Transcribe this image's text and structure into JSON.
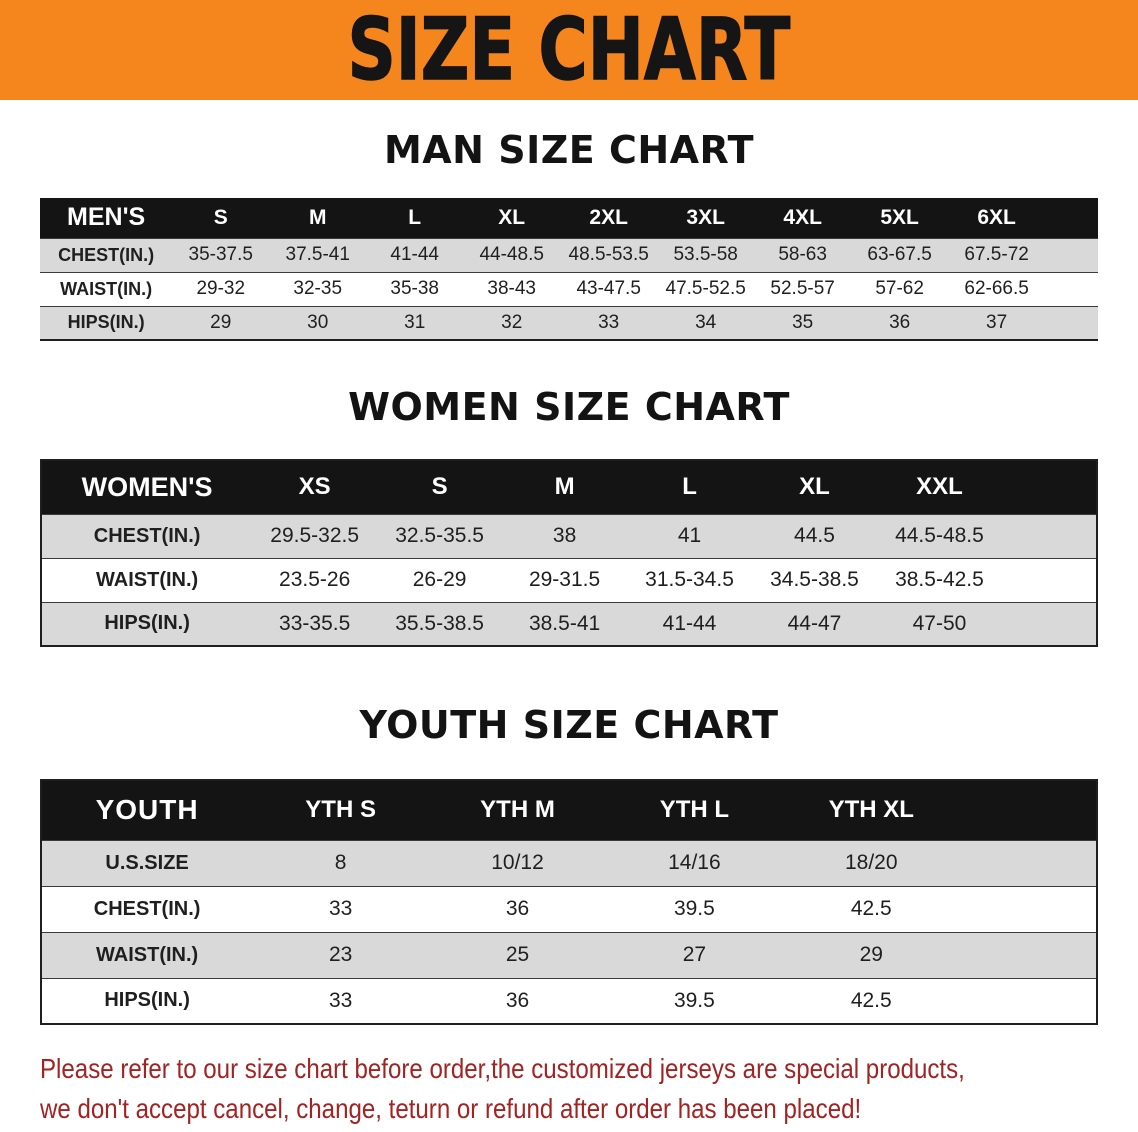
{
  "banner": {
    "title": "SIZE CHART",
    "background_color": "#f5851d",
    "title_color": "#151515"
  },
  "sections": [
    {
      "heading": "MAN SIZE CHART",
      "table": {
        "corner_label": "MEN'S",
        "columns": [
          "S",
          "M",
          "L",
          "XL",
          "2XL",
          "3XL",
          "4XL",
          "5XL",
          "6XL"
        ],
        "rows": [
          {
            "label": "CHEST(IN.)",
            "values": [
              "35-37.5",
              "37.5-41",
              "41-44",
              "44-48.5",
              "48.5-53.5",
              "53.5-58",
              "58-63",
              "63-67.5",
              "67.5-72"
            ]
          },
          {
            "label": "WAIST(IN.)",
            "values": [
              "29-32",
              "32-35",
              "35-38",
              "38-43",
              "43-47.5",
              "47.5-52.5",
              "52.5-57",
              "57-62",
              "62-66.5"
            ]
          },
          {
            "label": "HIPS(IN.)",
            "values": [
              "29",
              "30",
              "31",
              "32",
              "33",
              "34",
              "35",
              "36",
              "37"
            ]
          }
        ]
      }
    },
    {
      "heading": "WOMEN SIZE CHART",
      "table": {
        "corner_label": "WOMEN'S",
        "columns": [
          "XS",
          "S",
          "M",
          "L",
          "XL",
          "XXL"
        ],
        "rows": [
          {
            "label": "CHEST(IN.)",
            "values": [
              "29.5-32.5",
              "32.5-35.5",
              "38",
              "41",
              "44.5",
              "44.5-48.5"
            ]
          },
          {
            "label": "WAIST(IN.)",
            "values": [
              "23.5-26",
              "26-29",
              "29-31.5",
              "31.5-34.5",
              "34.5-38.5",
              "38.5-42.5"
            ]
          },
          {
            "label": "HIPS(IN.)",
            "values": [
              "33-35.5",
              "35.5-38.5",
              "38.5-41",
              "41-44",
              "44-47",
              "47-50"
            ]
          }
        ]
      }
    },
    {
      "heading": "YOUTH SIZE CHART",
      "table": {
        "corner_label": "YOUTH",
        "columns": [
          "YTH S",
          "YTH M",
          "YTH L",
          "YTH XL"
        ],
        "rows": [
          {
            "label": "U.S.SIZE",
            "values": [
              "8",
              "10/12",
              "14/16",
              "18/20"
            ]
          },
          {
            "label": "CHEST(IN.)",
            "values": [
              "33",
              "36",
              "39.5",
              "42.5"
            ]
          },
          {
            "label": "WAIST(IN.)",
            "values": [
              "23",
              "25",
              "27",
              "29"
            ]
          },
          {
            "label": "HIPS(IN.)",
            "values": [
              "33",
              "36",
              "39.5",
              "42.5"
            ]
          }
        ]
      }
    }
  ],
  "disclaimer": {
    "lines": [
      "Please refer to our size chart before order,the customized jerseys are special products,",
      "we don't accept cancel, change, teturn or refund after order has been placed!"
    ],
    "text_color": "#a32222"
  },
  "style_colors": {
    "table_header_background": "#141414",
    "table_header_text": "#ffffff",
    "alternate_row_background": "#d9d9d9"
  },
  "chart_data": [
    {
      "type": "table",
      "title": "MAN SIZE CHART",
      "columns": [
        "MEN'S",
        "S",
        "M",
        "L",
        "XL",
        "2XL",
        "3XL",
        "4XL",
        "5XL",
        "6XL"
      ],
      "rows": [
        [
          "CHEST(IN.)",
          "35-37.5",
          "37.5-41",
          "41-44",
          "44-48.5",
          "48.5-53.5",
          "53.5-58",
          "58-63",
          "63-67.5",
          "67.5-72"
        ],
        [
          "WAIST(IN.)",
          "29-32",
          "32-35",
          "35-38",
          "38-43",
          "43-47.5",
          "47.5-52.5",
          "52.5-57",
          "57-62",
          "62-66.5"
        ],
        [
          "HIPS(IN.)",
          "29",
          "30",
          "31",
          "32",
          "33",
          "34",
          "35",
          "36",
          "37"
        ]
      ]
    },
    {
      "type": "table",
      "title": "WOMEN SIZE CHART",
      "columns": [
        "WOMEN'S",
        "XS",
        "S",
        "M",
        "L",
        "XL",
        "XXL"
      ],
      "rows": [
        [
          "CHEST(IN.)",
          "29.5-32.5",
          "32.5-35.5",
          "38",
          "41",
          "44.5",
          "44.5-48.5"
        ],
        [
          "WAIST(IN.)",
          "23.5-26",
          "26-29",
          "29-31.5",
          "31.5-34.5",
          "34.5-38.5",
          "38.5-42.5"
        ],
        [
          "HIPS(IN.)",
          "33-35.5",
          "35.5-38.5",
          "38.5-41",
          "41-44",
          "44-47",
          "47-50"
        ]
      ]
    },
    {
      "type": "table",
      "title": "YOUTH SIZE CHART",
      "columns": [
        "YOUTH",
        "YTH S",
        "YTH M",
        "YTH L",
        "YTH XL"
      ],
      "rows": [
        [
          "U.S.SIZE",
          "8",
          "10/12",
          "14/16",
          "18/20"
        ],
        [
          "CHEST(IN.)",
          "33",
          "36",
          "39.5",
          "42.5"
        ],
        [
          "WAIST(IN.)",
          "23",
          "25",
          "27",
          "29"
        ],
        [
          "HIPS(IN.)",
          "33",
          "36",
          "39.5",
          "42.5"
        ]
      ]
    }
  ]
}
